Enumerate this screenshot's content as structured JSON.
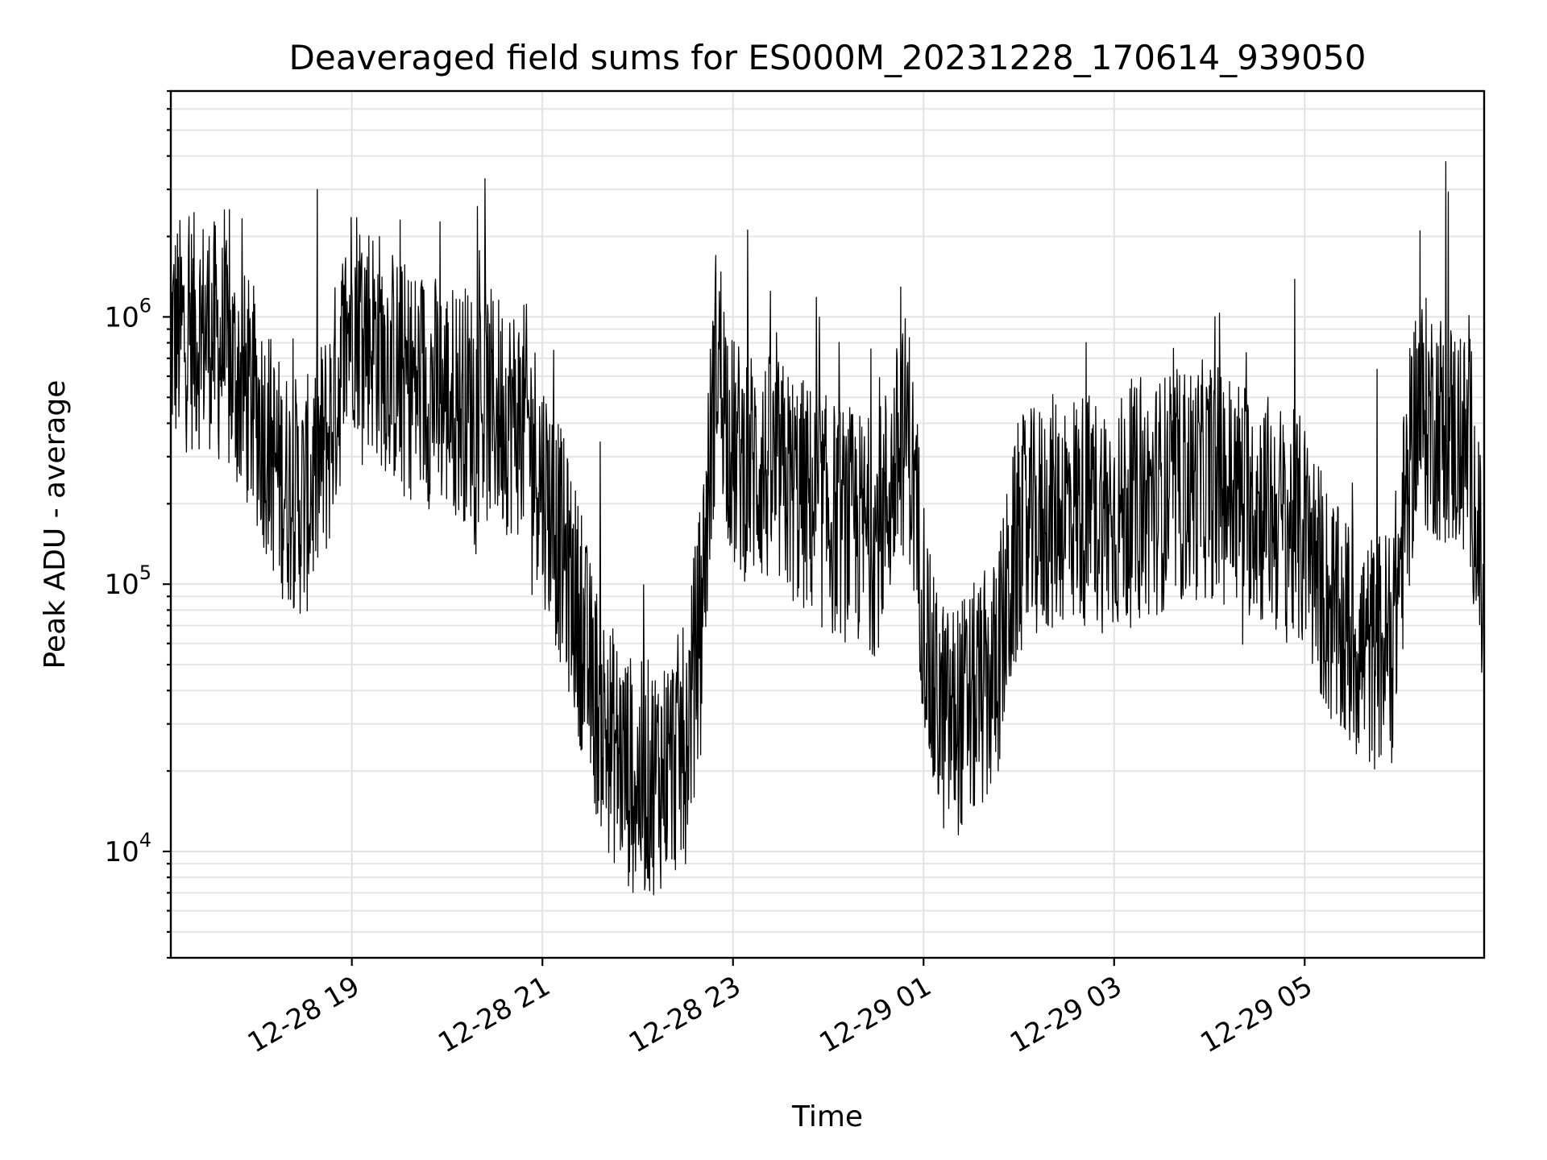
{
  "chart_data": {
    "type": "line",
    "title": "Deaveraged field sums for ES000M_20231228_170614_939050",
    "xlabel": "Time",
    "ylabel": "Peak ADU - average",
    "yscale": "log",
    "xlim": [
      "2023-12-28 17:06",
      "2023-12-29 06:53"
    ],
    "ylim": [
      4000,
      7000000
    ],
    "grid": "on (major and minor)",
    "x_tick_labels": [
      "12-28 19",
      "12-28 21",
      "12-28 23",
      "12-29 01",
      "12-29 03",
      "12-29 05"
    ],
    "x_tick_times": [
      "2023-12-28 19:00",
      "2023-12-28 21:00",
      "2023-12-28 23:00",
      "2023-12-29 01:00",
      "2023-12-29 03:00",
      "2023-12-29 05:00"
    ],
    "y_ticks": [
      {
        "base": "10",
        "exp": "4",
        "value": 10000
      },
      {
        "base": "10",
        "exp": "5",
        "value": 100000
      },
      {
        "base": "10",
        "exp": "6",
        "value": 1000000
      }
    ],
    "series_color": "#000000",
    "x": [
      "2023-12-28 17:06",
      "2023-12-28 17:30",
      "2023-12-28 18:00",
      "2023-12-28 18:15",
      "2023-12-28 18:30",
      "2023-12-28 18:45",
      "2023-12-28 19:00",
      "2023-12-28 19:30",
      "2023-12-28 20:00",
      "2023-12-28 20:30",
      "2023-12-28 20:50",
      "2023-12-28 21:10",
      "2023-12-28 21:20",
      "2023-12-28 21:30",
      "2023-12-28 21:40",
      "2023-12-28 21:50",
      "2023-12-28 22:00",
      "2023-12-28 22:15",
      "2023-12-28 22:30",
      "2023-12-28 22:40",
      "2023-12-28 22:50",
      "2023-12-28 23:00",
      "2023-12-28 23:30",
      "2023-12-29 00:00",
      "2023-12-29 00:30",
      "2023-12-29 00:50",
      "2023-12-29 01:05",
      "2023-12-29 01:15",
      "2023-12-29 01:30",
      "2023-12-29 01:45",
      "2023-12-29 02:00",
      "2023-12-29 02:30",
      "2023-12-29 03:00",
      "2023-12-29 03:30",
      "2023-12-29 04:00",
      "2023-12-29 04:30",
      "2023-12-29 05:00",
      "2023-12-29 05:20",
      "2023-12-29 05:40",
      "2023-12-29 05:55",
      "2023-12-29 06:10",
      "2023-12-29 06:30",
      "2023-12-29 06:45",
      "2023-12-29 06:53"
    ],
    "values": [
      850000,
      900000,
      450000,
      250000,
      200000,
      350000,
      1100000,
      600000,
      500000,
      450000,
      400000,
      150000,
      90000,
      45000,
      28000,
      22000,
      18000,
      20000,
      25000,
      80000,
      800000,
      300000,
      250000,
      180000,
      150000,
      400000,
      40000,
      30000,
      35000,
      45000,
      150000,
      200000,
      180000,
      220000,
      250000,
      200000,
      150000,
      70000,
      55000,
      60000,
      450000,
      380000,
      300000,
      70000
    ]
  }
}
